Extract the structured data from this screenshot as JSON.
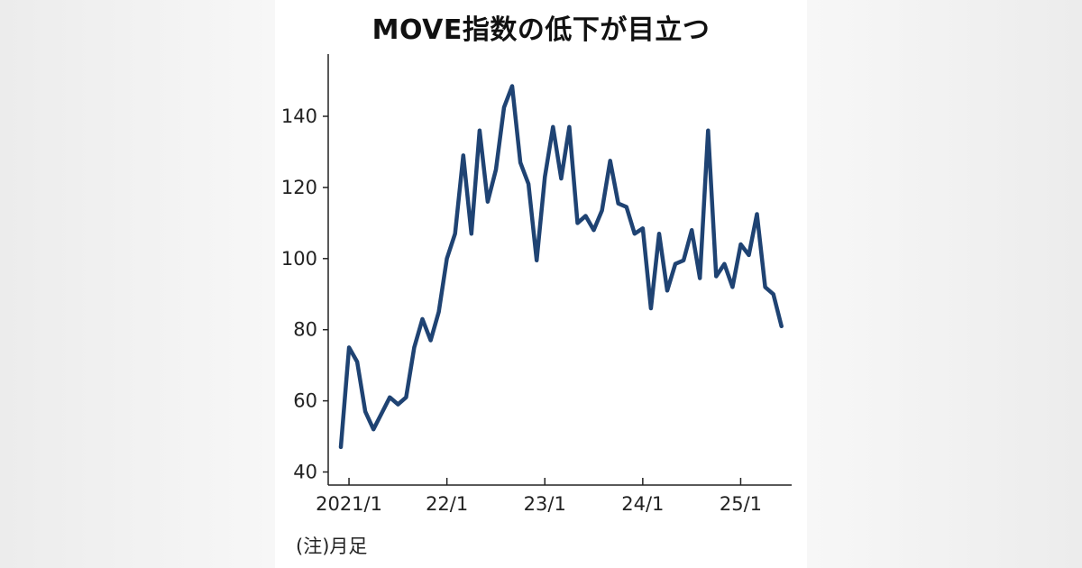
{
  "title": "MOVE指数の低下が目立つ",
  "note": "(注)月足",
  "colors": {
    "line": "#1f4373",
    "axis": "#222222",
    "text": "#222222"
  },
  "chart_data": {
    "type": "line",
    "title": "MOVE指数の低下が目立つ",
    "xlabel": "",
    "ylabel": "",
    "grid": false,
    "legend": "none",
    "ylim": [
      37,
      158
    ],
    "yticks": [
      40,
      60,
      80,
      100,
      120,
      140
    ],
    "xticks": [
      {
        "label": "2021/1",
        "x": "2021-01"
      },
      {
        "label": "22/1",
        "x": "2022-01"
      },
      {
        "label": "23/1",
        "x": "2023-01"
      },
      {
        "label": "24/1",
        "x": "2024-01"
      },
      {
        "label": "25/1",
        "x": "2025-01"
      }
    ],
    "series": [
      {
        "x": [
          "2020-12",
          "2021-01",
          "2021-02",
          "2021-03",
          "2021-04",
          "2021-05",
          "2021-06",
          "2021-07",
          "2021-08",
          "2021-09",
          "2021-10",
          "2021-11",
          "2021-12",
          "2022-01",
          "2022-02",
          "2022-03",
          "2022-04",
          "2022-05",
          "2022-06",
          "2022-07",
          "2022-08",
          "2022-09",
          "2022-10",
          "2022-11",
          "2022-12",
          "2023-01",
          "2023-02",
          "2023-03",
          "2023-04",
          "2023-05",
          "2023-06",
          "2023-07",
          "2023-08",
          "2023-09",
          "2023-10",
          "2023-11",
          "2023-12",
          "2024-01",
          "2024-02",
          "2024-03",
          "2024-04",
          "2024-05",
          "2024-06",
          "2024-07",
          "2024-08",
          "2024-09",
          "2024-10",
          "2024-11",
          "2024-12",
          "2025-01",
          "2025-02",
          "2025-03",
          "2025-04",
          "2025-05",
          "2025-06"
        ],
        "values": [
          47,
          75,
          71,
          57,
          52,
          56.5,
          61,
          59,
          61,
          75,
          83,
          77,
          85,
          100,
          107,
          129,
          107,
          136,
          116,
          125,
          142.5,
          148.5,
          127,
          121,
          99.5,
          123,
          137,
          122.5,
          137,
          110,
          112,
          108,
          113.5,
          127.5,
          115.5,
          114.5,
          107,
          108.5,
          86,
          107,
          91,
          98.5,
          99.5,
          108,
          94.5,
          136,
          95,
          98.5,
          92,
          104,
          101,
          112.5,
          92,
          90,
          81
        ]
      }
    ]
  }
}
